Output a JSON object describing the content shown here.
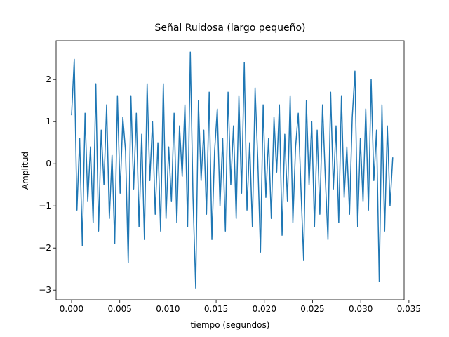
{
  "chart_data": {
    "type": "line",
    "title": "Señal Ruidosa (largo pequeño)",
    "x_label": "tiempo (segundos)",
    "y_label": "Amplitud",
    "x": [
      0,
      0.00028,
      0.00056,
      0.00084,
      0.00112,
      0.0014,
      0.00168,
      0.00196,
      0.00224,
      0.00252,
      0.0028,
      0.00308,
      0.00336,
      0.00364,
      0.00392,
      0.0042,
      0.00448,
      0.00476,
      0.00504,
      0.00532,
      0.0056,
      0.00588,
      0.00616,
      0.00644,
      0.00672,
      0.007,
      0.00728,
      0.00756,
      0.00784,
      0.00812,
      0.0084,
      0.00868,
      0.00896,
      0.00924,
      0.00952,
      0.0098,
      0.01008,
      0.01036,
      0.01064,
      0.01092,
      0.0112,
      0.01148,
      0.01176,
      0.01204,
      0.01232,
      0.0126,
      0.01288,
      0.01316,
      0.01344,
      0.01372,
      0.014,
      0.01428,
      0.01456,
      0.01484,
      0.01512,
      0.0154,
      0.01568,
      0.01596,
      0.01624,
      0.01652,
      0.0168,
      0.01708,
      0.01736,
      0.01764,
      0.01792,
      0.0182,
      0.01848,
      0.01876,
      0.01904,
      0.01932,
      0.0196,
      0.01988,
      0.02016,
      0.02044,
      0.02072,
      0.021,
      0.02128,
      0.02156,
      0.02184,
      0.02212,
      0.0224,
      0.02268,
      0.02296,
      0.02324,
      0.02352,
      0.0238,
      0.02408,
      0.02436,
      0.02464,
      0.02492,
      0.0252,
      0.02548,
      0.02576,
      0.02604,
      0.02632,
      0.0266,
      0.02688,
      0.02716,
      0.02744,
      0.02772,
      0.028,
      0.02828,
      0.02856,
      0.02884,
      0.02912,
      0.0294,
      0.02968,
      0.02996,
      0.03024,
      0.03052,
      0.0308,
      0.03108,
      0.03136,
      0.03164,
      0.03192,
      0.0322,
      0.03248,
      0.03276,
      0.03304,
      0.03332
    ],
    "series": [
      {
        "color": "#1f77b4",
        "values": [
          1.15,
          2.48,
          -1.1,
          0.6,
          -1.95,
          1.2,
          -0.9,
          0.4,
          -1.4,
          1.9,
          -1.6,
          0.8,
          -0.5,
          1.4,
          -1.3,
          0.2,
          -1.9,
          1.6,
          -0.7,
          1.1,
          0.3,
          -2.35,
          1.6,
          -0.6,
          1.2,
          -1.5,
          0.7,
          -1.8,
          1.9,
          -0.4,
          1.0,
          -1.2,
          0.5,
          -1.6,
          1.9,
          -1.3,
          0.4,
          -0.9,
          1.2,
          -1.4,
          0.9,
          -0.3,
          1.4,
          -1.5,
          2.65,
          -0.8,
          -2.95,
          1.5,
          -0.4,
          0.8,
          -1.2,
          1.7,
          -1.8,
          0.3,
          1.3,
          -1.0,
          0.6,
          -1.6,
          1.7,
          -0.5,
          0.9,
          -1.3,
          1.6,
          -0.7,
          2.4,
          -1.1,
          0.5,
          -1.5,
          1.8,
          0.1,
          -2.1,
          1.4,
          -0.8,
          0.6,
          -1.3,
          1.1,
          -0.2,
          1.4,
          -1.7,
          0.7,
          -0.9,
          1.6,
          -1.4,
          0.4,
          1.2,
          -0.6,
          -2.3,
          1.5,
          -0.5,
          1.0,
          -1.5,
          0.8,
          -1.2,
          1.4,
          -0.3,
          -1.8,
          1.7,
          -0.6,
          0.9,
          -1.4,
          1.6,
          -0.8,
          0.4,
          -1.2,
          1.1,
          2.2,
          -1.5,
          0.6,
          -0.9,
          1.3,
          -1.1,
          2.0,
          -0.4,
          0.8,
          -2.8,
          1.4,
          -1.6,
          0.9,
          -1.0,
          0.15
        ]
      }
    ],
    "xlim": [
      -0.0016,
      0.0345
    ],
    "ylim": [
      -3.23,
      2.92
    ],
    "xticks": [
      {
        "value": 0,
        "label": "0.000"
      },
      {
        "value": 0.005,
        "label": "0.005"
      },
      {
        "value": 0.01,
        "label": "0.010"
      },
      {
        "value": 0.015,
        "label": "0.015"
      },
      {
        "value": 0.02,
        "label": "0.020"
      },
      {
        "value": 0.025,
        "label": "0.025"
      },
      {
        "value": 0.03,
        "label": "0.030"
      },
      {
        "value": 0.035,
        "label": "0.035"
      }
    ],
    "yticks": [
      {
        "value": -3,
        "label": "−3"
      },
      {
        "value": -2,
        "label": "−2"
      },
      {
        "value": -1,
        "label": "−1"
      },
      0,
      1,
      2
    ]
  }
}
